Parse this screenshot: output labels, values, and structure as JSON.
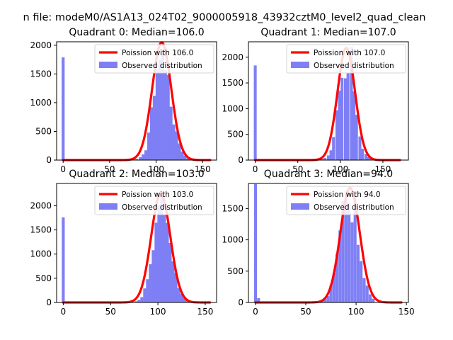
{
  "figure": {
    "suptitle": "n file: modeM0/AS1A13_024T02_9000005918_43932cztM0_level2_quad_clean"
  },
  "colors": {
    "poisson_line": "#ff0000",
    "observed_bars": "#7f7ff5",
    "axis": "#000000"
  },
  "chart_data": [
    {
      "type": "bar",
      "title": "Quadrant 0: Median=106.0",
      "xlim": [
        -7,
        165
      ],
      "ylim": [
        0,
        2060
      ],
      "xticks": [
        0,
        50,
        100,
        150
      ],
      "yticks": [
        0,
        500,
        1000,
        1500,
        2000
      ],
      "legend_position": "top-right",
      "series": [
        {
          "name": "Poission with 106.0",
          "kind": "line",
          "mu": 106.0,
          "scale": 2050,
          "x_range": [
            0,
            158
          ]
        },
        {
          "name": "Observed distribution",
          "kind": "histogram",
          "bin_width": 3.2,
          "bins": [
            {
              "x": 0,
              "count": 1790
            },
            {
              "x": 76,
              "count": 10
            },
            {
              "x": 79,
              "count": 20
            },
            {
              "x": 83,
              "count": 50
            },
            {
              "x": 86,
              "count": 100
            },
            {
              "x": 89,
              "count": 170
            },
            {
              "x": 92,
              "count": 480
            },
            {
              "x": 95,
              "count": 920
            },
            {
              "x": 98,
              "count": 1120
            },
            {
              "x": 101,
              "count": 1580
            },
            {
              "x": 104,
              "count": 1750
            },
            {
              "x": 107,
              "count": 1920
            },
            {
              "x": 110,
              "count": 1560
            },
            {
              "x": 113,
              "count": 1480
            },
            {
              "x": 116,
              "count": 930
            },
            {
              "x": 119,
              "count": 620
            },
            {
              "x": 122,
              "count": 500
            },
            {
              "x": 125,
              "count": 290
            },
            {
              "x": 128,
              "count": 150
            },
            {
              "x": 131,
              "count": 80
            },
            {
              "x": 134,
              "count": 30
            }
          ]
        }
      ]
    },
    {
      "type": "bar",
      "title": "Quadrant 1: Median=107.0",
      "xlim": [
        -8,
        180
      ],
      "ylim": [
        0,
        2300
      ],
      "xticks": [
        0,
        50,
        100,
        150
      ],
      "yticks": [
        0,
        500,
        1000,
        1500,
        2000
      ],
      "legend_position": "top-right",
      "series": [
        {
          "name": "Poission with 107.0",
          "kind": "line",
          "mu": 107.0,
          "scale": 2180,
          "x_range": [
            0,
            170
          ]
        },
        {
          "name": "Observed distribution",
          "kind": "histogram",
          "bin_width": 3.4,
          "bins": [
            {
              "x": 0,
              "count": 1840
            },
            {
              "x": 72,
              "count": 10
            },
            {
              "x": 79,
              "count": 20
            },
            {
              "x": 82,
              "count": 40
            },
            {
              "x": 86,
              "count": 90
            },
            {
              "x": 89,
              "count": 190
            },
            {
              "x": 92,
              "count": 450
            },
            {
              "x": 96,
              "count": 970
            },
            {
              "x": 99,
              "count": 1350
            },
            {
              "x": 102,
              "count": 1600
            },
            {
              "x": 106,
              "count": 1590
            },
            {
              "x": 109,
              "count": 1690
            },
            {
              "x": 113,
              "count": 2200
            },
            {
              "x": 116,
              "count": 1340
            },
            {
              "x": 119,
              "count": 880
            },
            {
              "x": 123,
              "count": 460
            },
            {
              "x": 126,
              "count": 220
            },
            {
              "x": 130,
              "count": 120
            },
            {
              "x": 133,
              "count": 60
            },
            {
              "x": 136,
              "count": 30
            },
            {
              "x": 140,
              "count": 10
            }
          ]
        }
      ]
    },
    {
      "type": "bar",
      "title": "Quadrant 2: Median=103.0",
      "xlim": [
        -7,
        162
      ],
      "ylim": [
        0,
        2460
      ],
      "xticks": [
        0,
        50,
        100,
        150
      ],
      "yticks": [
        0,
        500,
        1000,
        1500,
        2000
      ],
      "legend_position": "top-right",
      "series": [
        {
          "name": "Poission with 103.0",
          "kind": "line",
          "mu": 103.0,
          "scale": 2250,
          "x_range": [
            0,
            155
          ]
        },
        {
          "name": "Observed distribution",
          "kind": "histogram",
          "bin_width": 3.1,
          "bins": [
            {
              "x": 0,
              "count": 1760
            },
            {
              "x": 73,
              "count": 10
            },
            {
              "x": 77,
              "count": 25
            },
            {
              "x": 80,
              "count": 55
            },
            {
              "x": 83,
              "count": 110
            },
            {
              "x": 86,
              "count": 290
            },
            {
              "x": 89,
              "count": 480
            },
            {
              "x": 92,
              "count": 790
            },
            {
              "x": 95,
              "count": 1080
            },
            {
              "x": 98,
              "count": 1650
            },
            {
              "x": 101,
              "count": 2010
            },
            {
              "x": 104,
              "count": 2250
            },
            {
              "x": 107,
              "count": 1810
            },
            {
              "x": 110,
              "count": 1640
            },
            {
              "x": 113,
              "count": 1230
            },
            {
              "x": 116,
              "count": 850
            },
            {
              "x": 119,
              "count": 610
            },
            {
              "x": 122,
              "count": 300
            },
            {
              "x": 125,
              "count": 180
            },
            {
              "x": 128,
              "count": 90
            },
            {
              "x": 131,
              "count": 40
            }
          ]
        }
      ]
    },
    {
      "type": "bar",
      "title": "Quadrant 3: Median=94.0",
      "xlim": [
        -7,
        152
      ],
      "ylim": [
        0,
        1900
      ],
      "xticks": [
        0,
        50,
        100,
        150
      ],
      "yticks": [
        0,
        500,
        1000,
        1500
      ],
      "legend_position": "top-right",
      "series": [
        {
          "name": "Poission with 94.0",
          "kind": "line",
          "mu": 94.0,
          "scale": 1830,
          "x_range": [
            0,
            145
          ]
        },
        {
          "name": "Observed distribution",
          "kind": "histogram",
          "bin_width": 2.9,
          "bins": [
            {
              "x": 0,
              "count": 1890
            },
            {
              "x": 3,
              "count": 70
            },
            {
              "x": 60,
              "count": 10
            },
            {
              "x": 66,
              "count": 20
            },
            {
              "x": 69,
              "count": 50
            },
            {
              "x": 72,
              "count": 100
            },
            {
              "x": 75,
              "count": 280
            },
            {
              "x": 78,
              "count": 470
            },
            {
              "x": 81,
              "count": 780
            },
            {
              "x": 84,
              "count": 1150
            },
            {
              "x": 87,
              "count": 1620
            },
            {
              "x": 90,
              "count": 1780
            },
            {
              "x": 93,
              "count": 1590
            },
            {
              "x": 96,
              "count": 1280
            },
            {
              "x": 99,
              "count": 1700
            },
            {
              "x": 102,
              "count": 920
            },
            {
              "x": 105,
              "count": 660
            },
            {
              "x": 108,
              "count": 390
            },
            {
              "x": 111,
              "count": 270
            },
            {
              "x": 114,
              "count": 130
            },
            {
              "x": 117,
              "count": 60
            }
          ]
        }
      ]
    }
  ]
}
